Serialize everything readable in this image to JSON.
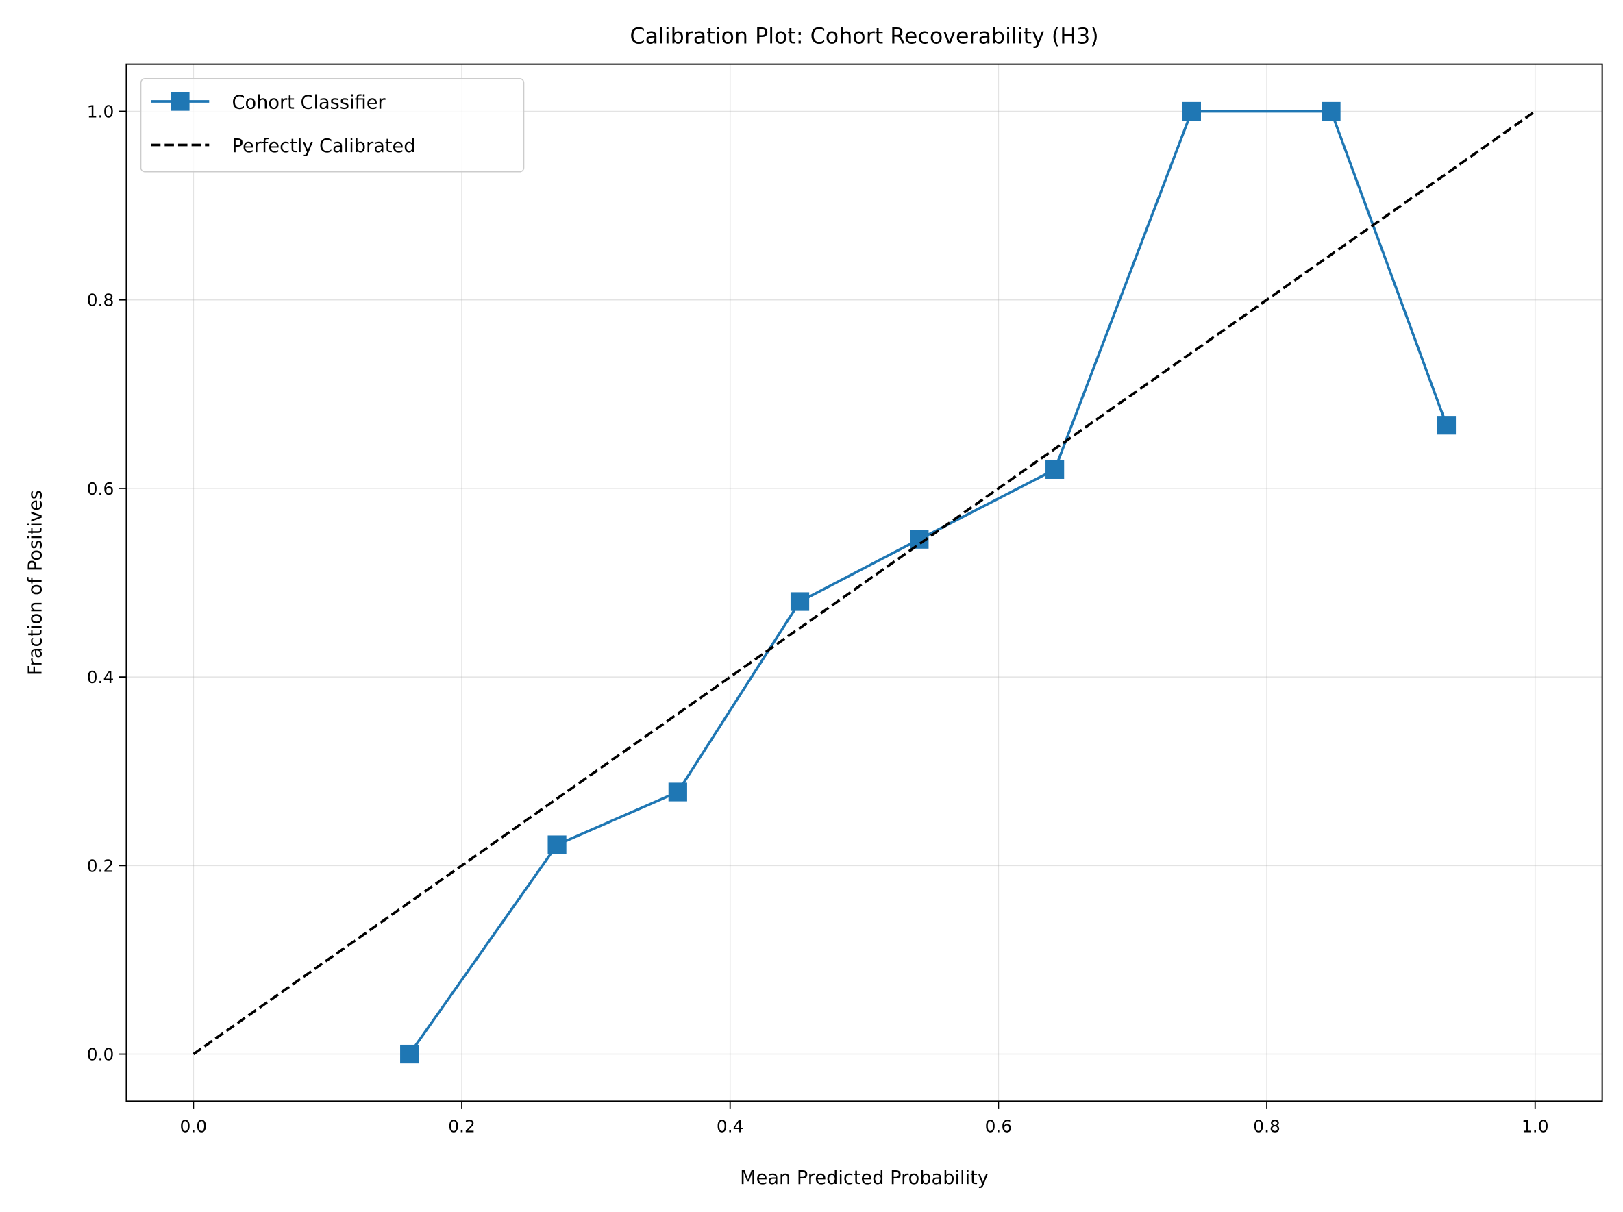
{
  "chart_data": {
    "type": "line",
    "title": "Calibration Plot: Cohort Recoverability (H3)",
    "xlabel": "Mean Predicted Probability",
    "ylabel": "Fraction of Positives",
    "xlim": [
      -0.05,
      1.05
    ],
    "ylim": [
      -0.05,
      1.05
    ],
    "xticks": [
      "0.0",
      "0.2",
      "0.4",
      "0.6",
      "0.8",
      "1.0"
    ],
    "yticks": [
      "0.0",
      "0.2",
      "0.4",
      "0.6",
      "0.8",
      "1.0"
    ],
    "grid": true,
    "legend_position": "top-left",
    "series": [
      {
        "name": "Cohort Classifier",
        "color": "#1f77b4",
        "marker": "square",
        "style": "solid",
        "x": [
          0.161,
          0.271,
          0.361,
          0.452,
          0.541,
          0.642,
          0.744,
          0.848,
          0.934
        ],
        "y": [
          0.0,
          0.222,
          0.278,
          0.48,
          0.546,
          0.62,
          1.0,
          1.0,
          0.667
        ]
      },
      {
        "name": "Perfectly Calibrated",
        "color": "#000000",
        "style": "dashed",
        "x": [
          0,
          1
        ],
        "y": [
          0,
          1
        ]
      }
    ]
  }
}
